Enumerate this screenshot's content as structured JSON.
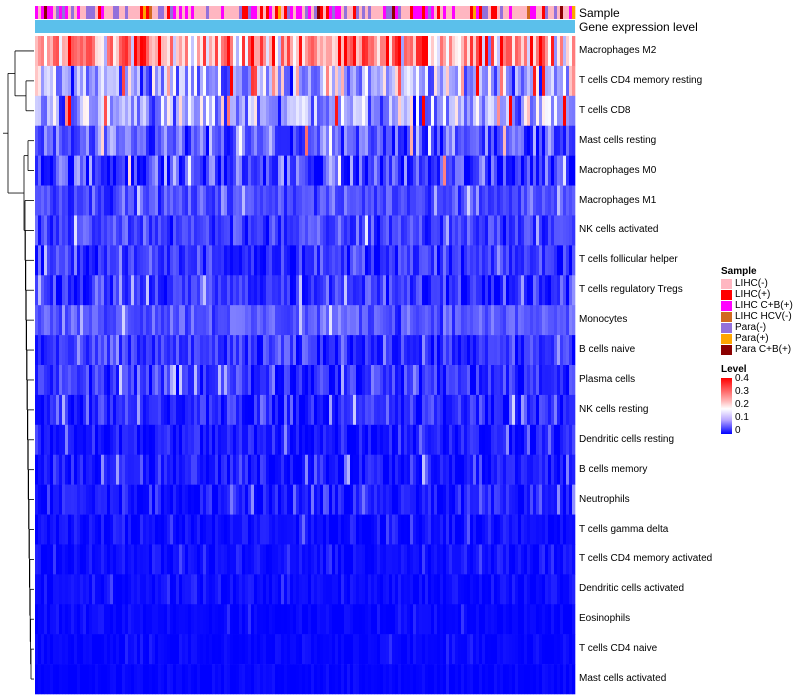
{
  "chart_data": {
    "type": "heatmap",
    "annotation_labels": [
      "Sample",
      "Gene expression level"
    ],
    "rows": [
      {
        "label": "Macrophages M2",
        "mean": 0.28,
        "spread": 0.1
      },
      {
        "label": "T cells CD4 memory resting",
        "mean": 0.13,
        "spread": 0.08
      },
      {
        "label": "T cells CD8",
        "mean": 0.13,
        "spread": 0.08
      },
      {
        "label": "Mast cells resting",
        "mean": 0.06,
        "spread": 0.06
      },
      {
        "label": "Macrophages M0",
        "mean": 0.05,
        "spread": 0.07
      },
      {
        "label": "Macrophages M1",
        "mean": 0.06,
        "spread": 0.03
      },
      {
        "label": "NK cells activated",
        "mean": 0.05,
        "spread": 0.04
      },
      {
        "label": "T cells follicular helper",
        "mean": 0.04,
        "spread": 0.04
      },
      {
        "label": "T cells regulatory  Tregs",
        "mean": 0.04,
        "spread": 0.04
      },
      {
        "label": "Monocytes",
        "mean": 0.07,
        "spread": 0.03
      },
      {
        "label": "B cells naive",
        "mean": 0.04,
        "spread": 0.04
      },
      {
        "label": "Plasma cells",
        "mean": 0.04,
        "spread": 0.04
      },
      {
        "label": "NK cells resting",
        "mean": 0.03,
        "spread": 0.04
      },
      {
        "label": "Dendritic cells resting",
        "mean": 0.02,
        "spread": 0.03
      },
      {
        "label": "B cells memory",
        "mean": 0.02,
        "spread": 0.03
      },
      {
        "label": "Neutrophils",
        "mean": 0.02,
        "spread": 0.03
      },
      {
        "label": "T cells gamma delta",
        "mean": 0.01,
        "spread": 0.02
      },
      {
        "label": "T cells CD4 memory activated",
        "mean": 0.01,
        "spread": 0.015
      },
      {
        "label": "Dendritic cells activated",
        "mean": 0.01,
        "spread": 0.015
      },
      {
        "label": "Eosinophils",
        "mean": 0.005,
        "spread": 0.01
      },
      {
        "label": "T cells CD4 naive",
        "mean": 0.005,
        "spread": 0.01
      },
      {
        "label": "Mast cells activated",
        "mean": 0.003,
        "spread": 0.008
      }
    ],
    "n_samples": 180,
    "sample_legend": {
      "title": "Sample",
      "items": [
        {
          "label": "LIHC(-)",
          "color": "#ffb6c1"
        },
        {
          "label": "LIHC(+)",
          "color": "#ff0000"
        },
        {
          "label": "LIHC C+B(+)",
          "color": "#ff00ff"
        },
        {
          "label": "LIHC HCV(-)",
          "color": "#d2691e"
        },
        {
          "label": "Para(-)",
          "color": "#9370db"
        },
        {
          "label": "Para(+)",
          "color": "#ffa500"
        },
        {
          "label": "Para C+B(+)",
          "color": "#8b0000"
        }
      ]
    },
    "level_legend": {
      "title": "Level",
      "ticks": [
        "0.4",
        "0.3",
        "0.2",
        "0.1",
        "0"
      ],
      "range": [
        0,
        0.4
      ],
      "low_color": "#0000ff",
      "mid_color": "#ffffff",
      "high_color": "#ff0000"
    },
    "gene_expression_color": "#5bc0eb"
  }
}
